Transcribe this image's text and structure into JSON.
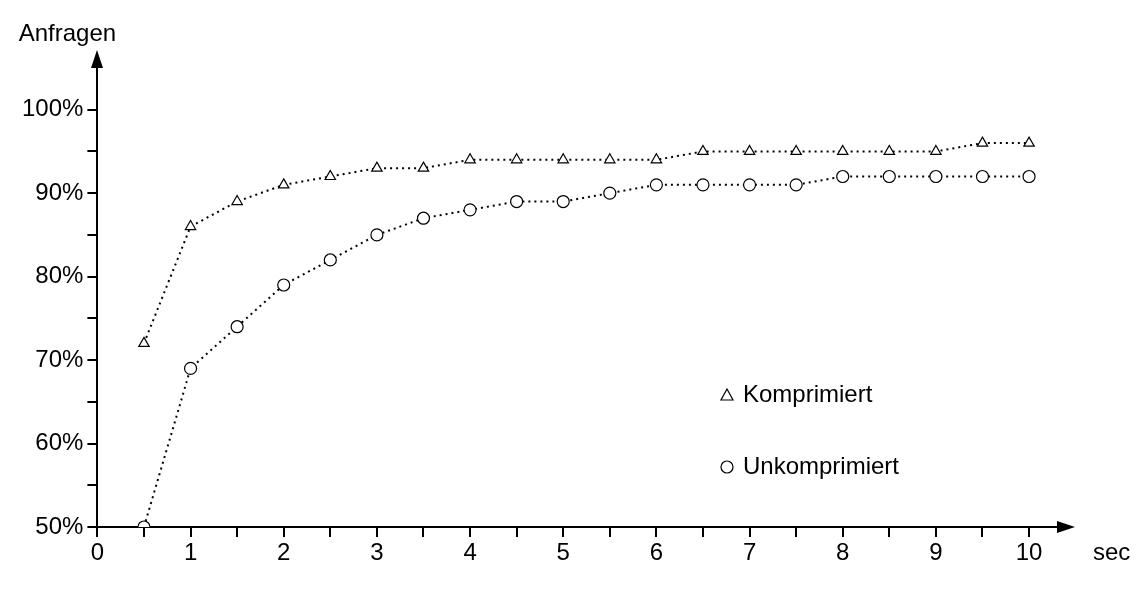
{
  "chart_data": {
    "type": "line",
    "xlabel": "sec",
    "ylabel": "Anfragen",
    "x": [
      0.5,
      1,
      1.5,
      2,
      2.5,
      3,
      3.5,
      4,
      4.5,
      5,
      5.5,
      6,
      6.5,
      7,
      7.5,
      8,
      8.5,
      9,
      9.5,
      10
    ],
    "series": [
      {
        "name": "Komprimiert",
        "color": "#000000",
        "marker": "triangle",
        "values": [
          72,
          86,
          89,
          91,
          92,
          93,
          93,
          94,
          94,
          94,
          94,
          94,
          95,
          95,
          95,
          95,
          95,
          95,
          96,
          96
        ]
      },
      {
        "name": "Unkomprimiert",
        "color": "#000000",
        "marker": "circle",
        "values": [
          50,
          69,
          74,
          79,
          82,
          85,
          87,
          88,
          89,
          89,
          90,
          91,
          91,
          91,
          91,
          92,
          92,
          92,
          92,
          92
        ]
      }
    ],
    "xlim": [
      0,
      10.3
    ],
    "ylim": [
      50,
      105
    ],
    "xticks": [
      0,
      {
        "value": 0.5,
        "label": null
      },
      1,
      {
        "value": 1.5,
        "label": null
      },
      2,
      {
        "value": 2.5,
        "label": null
      },
      3,
      {
        "value": 3.5,
        "label": null
      },
      4,
      {
        "value": 4.5,
        "label": null
      },
      5,
      {
        "value": 5.5,
        "label": null
      },
      6,
      {
        "value": 6.5,
        "label": null
      },
      7,
      {
        "value": 7.5,
        "label": null
      },
      8,
      {
        "value": 8.5,
        "label": null
      },
      9,
      {
        "value": 9.5,
        "label": null
      },
      10
    ],
    "yticks": [
      {
        "value": 50,
        "label": "50%"
      },
      {
        "value": 55,
        "label": null
      },
      {
        "value": 60,
        "label": "60%"
      },
      {
        "value": 65,
        "label": null
      },
      {
        "value": 70,
        "label": "70%"
      },
      {
        "value": 75,
        "label": null
      },
      {
        "value": 80,
        "label": "80%"
      },
      {
        "value": 85,
        "label": null
      },
      {
        "value": 90,
        "label": "90%"
      },
      {
        "value": 95,
        "label": null
      },
      {
        "value": 100,
        "label": "100%"
      }
    ],
    "grid": false,
    "legend": "bottom right",
    "line_style": "dotted"
  }
}
